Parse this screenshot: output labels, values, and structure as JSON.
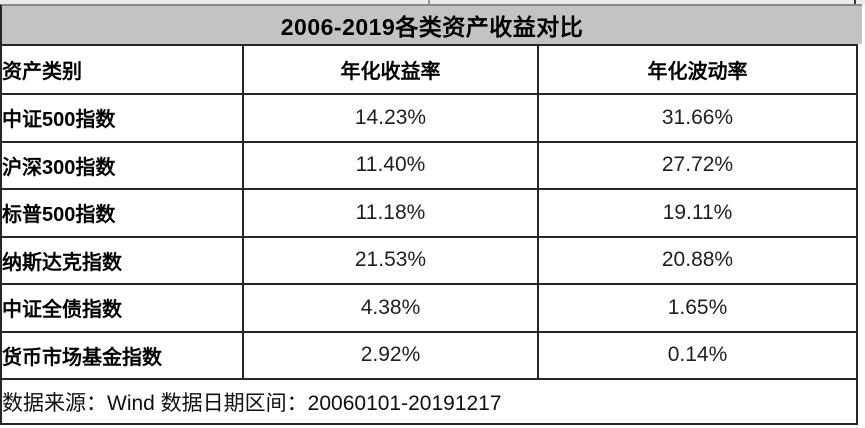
{
  "chart_data": {
    "type": "table",
    "title": "2006-2019各类资产收益对比",
    "columns": [
      "资产类别",
      "年化收益率",
      "年化波动率"
    ],
    "rows": [
      [
        "中证500指数",
        "14.23%",
        "31.66%"
      ],
      [
        "沪深300指数",
        "11.40%",
        "27.72%"
      ],
      [
        "标普500指数",
        "11.18%",
        "19.11%"
      ],
      [
        "纳斯达克指数",
        "21.53%",
        "20.88%"
      ],
      [
        "中证全债指数",
        "4.38%",
        "1.65%"
      ],
      [
        "货币市场基金指数",
        "2.92%",
        "0.14%"
      ]
    ],
    "source_note": "数据来源：Wind  数据日期区间：20060101-20191217",
    "colors": {
      "title_background": "#c3c3c3",
      "border": "#262626",
      "text": "#1f1f1f"
    }
  }
}
